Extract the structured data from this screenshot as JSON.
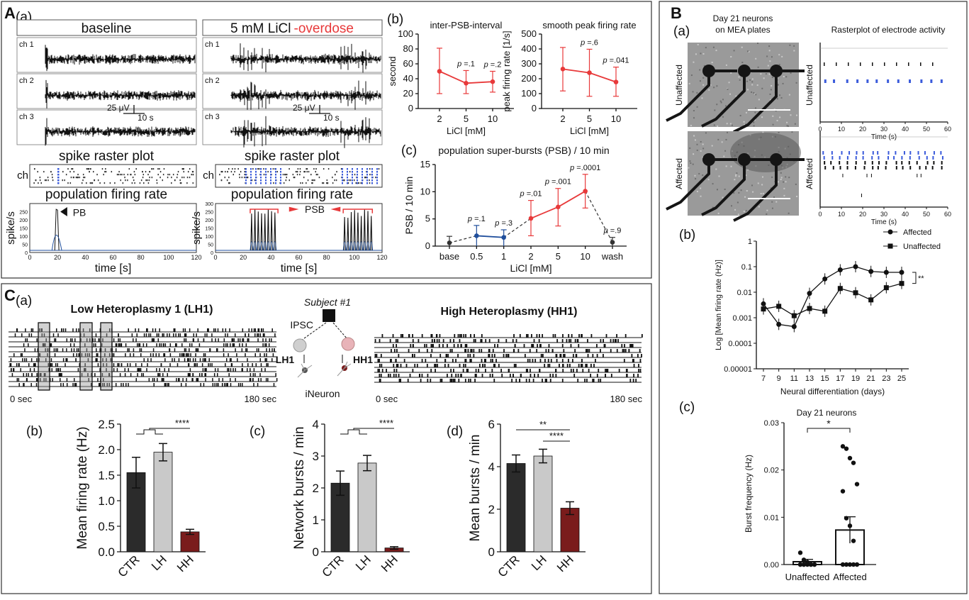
{
  "panelA": {
    "letter": "A",
    "a": {
      "label": "(a)",
      "baseline_title": "baseline",
      "overdose_prefix": "5 mM LiCl",
      "overdose_suffix": "-overdose",
      "channels": [
        "ch 1",
        "ch 2",
        "ch 3"
      ],
      "scalebar_v": "25 μV",
      "scalebar_t": "10 s",
      "raster_title": "spike raster plot",
      "raster_ylabel": "ch",
      "rate_title": "population firing rate",
      "rate_ylabel": "spike/s",
      "rate_xlabel": "time [s]",
      "pb_label": "PB",
      "psb_label": "PSB",
      "baseline_yticks": [
        "0",
        "50",
        "100",
        "150",
        "200",
        "250"
      ],
      "overdose_yticks": [
        "0",
        "50",
        "100",
        "150",
        "200",
        "250",
        "300"
      ],
      "xticks": [
        "0",
        "20",
        "40",
        "60",
        "80",
        "100",
        "120"
      ]
    },
    "b": {
      "label": "(b)",
      "chart_data": [
        {
          "type": "line",
          "title": "inter-PSB-interval",
          "ylabel": "second",
          "xlabel": "LiCl [mM]",
          "categories": [
            "2",
            "5",
            "10"
          ],
          "values": [
            50,
            34,
            36
          ],
          "err_low": [
            20,
            20,
            22
          ],
          "err_high": [
            81,
            51,
            50
          ],
          "ylim": [
            0,
            100
          ],
          "yticks": [
            "0",
            "20",
            "40",
            "60",
            "80",
            "100"
          ],
          "pvalues": [
            "",
            "p =.1",
            "p =.2"
          ]
        },
        {
          "type": "line",
          "title": "smooth peak firing rate",
          "ylabel": "peak firing rate [1/s]",
          "xlabel": "LiCl [mM]",
          "categories": [
            "2",
            "5",
            "10"
          ],
          "values": [
            265,
            240,
            178
          ],
          "err_low": [
            118,
            82,
            82
          ],
          "err_high": [
            410,
            398,
            278
          ],
          "ylim": [
            0,
            500
          ],
          "yticks": [
            "0",
            "100",
            "200",
            "300",
            "400",
            "500"
          ],
          "pvalues": [
            "",
            "p =.6",
            "p =.041"
          ]
        }
      ]
    },
    "c": {
      "label": "(c)",
      "chart_data": {
        "type": "line",
        "title": "population super-bursts (PSB) / 10 min",
        "ylabel": "PSB / 10 min",
        "xlabel": "LiCl [mM]",
        "categories": [
          "base",
          "0.5",
          "1",
          "2",
          "5",
          "10",
          "wash"
        ],
        "values": [
          0.6,
          1.9,
          1.6,
          5.1,
          7.2,
          10.1,
          0.7
        ],
        "err_low": [
          0,
          0,
          0,
          1.9,
          3.7,
          7.0,
          0
        ],
        "err_high": [
          1.8,
          3.8,
          3.0,
          8.4,
          10.6,
          13.2,
          1.6
        ],
        "ylim": [
          0,
          15
        ],
        "yticks": [
          "0",
          "5",
          "10",
          "15"
        ],
        "pvalues": [
          "",
          "p =.1",
          "p =.3",
          "p =.01",
          "p =.001",
          "p =.0001",
          "p =.9"
        ],
        "colors": [
          "#333333",
          "#1f4e9c",
          "#1f4e9c",
          "#e8393a",
          "#e8393a",
          "#e8393a",
          "#333333"
        ]
      }
    }
  },
  "panelB": {
    "letter": "B",
    "a": {
      "label": "(a)",
      "image_title_1": "Day 21 neurons",
      "image_title_2": "on MEA plates",
      "raster_title": "Rasterplot of electrode activity",
      "row_labels": [
        "Unaffected",
        "Affected"
      ],
      "xlabel": "Time (s)",
      "xticks": [
        "0",
        "10",
        "20",
        "30",
        "40",
        "50",
        "60"
      ]
    },
    "b": {
      "label": "(b)",
      "chart_data": {
        "type": "line",
        "ylabel": "Log [Mean firing rate (Hz)]",
        "xlabel": "Neural differentiation (days)",
        "x": [
          7,
          9,
          11,
          13,
          15,
          17,
          19,
          21,
          23,
          25
        ],
        "xticks": [
          "7",
          "9",
          "11",
          "13",
          "15",
          "17",
          "19",
          "21",
          "23",
          "25"
        ],
        "yticks": [
          "0.00001",
          "0.0001",
          "0.001",
          "0.01",
          "0.1",
          "1"
        ],
        "scale": "log",
        "series": [
          {
            "name": "Affected",
            "marker": "circle",
            "values": [
              0.0035,
              0.00055,
              0.00045,
              0.009,
              0.033,
              0.075,
              0.1,
              0.065,
              0.06,
              0.06
            ]
          },
          {
            "name": "Unaffected",
            "marker": "square",
            "values": [
              0.0022,
              0.0028,
              0.0012,
              0.0023,
              0.0018,
              0.014,
              0.0095,
              0.005,
              0.015,
              0.022
            ]
          }
        ],
        "significance": "**"
      }
    },
    "c": {
      "label": "(c)",
      "chart_data": {
        "type": "bar",
        "title": "Day 21 neurons",
        "ylabel": "Burst frequency (Hz)",
        "categories": [
          "Unaffected",
          "Affected"
        ],
        "values": [
          0.0006,
          0.0073
        ],
        "sem": [
          0.0005,
          0.0028
        ],
        "ylim": [
          0,
          0.03
        ],
        "yticks": [
          "0.00",
          "0.01",
          "0.02",
          "0.03"
        ],
        "points_affected": [
          0.025,
          0.0245,
          0.0225,
          0.0215,
          0.017,
          0.0155,
          0.0098,
          0.0082,
          0.005,
          0,
          0,
          0,
          0,
          0
        ],
        "points_unaffected": [
          0.0025,
          0.001,
          0.0005,
          0,
          0,
          0,
          0,
          0,
          0,
          0,
          0,
          0
        ],
        "significance": "*"
      }
    }
  },
  "panelC": {
    "letter": "C",
    "a": {
      "label": "(a)",
      "lh_title": "Low Heteroplasmy 1 (LH1)",
      "hh_title": "High Heteroplasmy (HH1)",
      "subject": "Subject #1",
      "ipsc": "IPSC",
      "lh1": "LH1",
      "hh1": "HH1",
      "ineuron": "iNeuron",
      "start_lh": "0 sec",
      "end_lh": "180 sec",
      "start_hh": "0 sec",
      "end_hh": "180 sec"
    },
    "bars": [
      {
        "label": "(b)",
        "chart_data": {
          "type": "bar",
          "ylabel": "Mean firing rate (Hz)",
          "categories": [
            "CTR",
            "LH",
            "HH"
          ],
          "values": [
            1.55,
            1.95,
            0.39
          ],
          "sem": [
            0.3,
            0.17,
            0.05
          ],
          "ylim": [
            0,
            2.5
          ],
          "yticks": [
            "0.0",
            "0.5",
            "1.0",
            "1.5",
            "2.0",
            "2.5"
          ],
          "colors": [
            "#2b2b2b",
            "#c9c9c9",
            "#7a1c1c"
          ],
          "significance": [
            "****"
          ]
        }
      },
      {
        "label": "(c)",
        "chart_data": {
          "type": "bar",
          "ylabel": "Network bursts / min",
          "categories": [
            "CTR",
            "LH",
            "HH"
          ],
          "values": [
            2.15,
            2.78,
            0.12
          ],
          "sem": [
            0.38,
            0.24,
            0.04
          ],
          "ylim": [
            0,
            4
          ],
          "yticks": [
            "0",
            "1",
            "2",
            "3",
            "4"
          ],
          "colors": [
            "#2b2b2b",
            "#c9c9c9",
            "#7a1c1c"
          ],
          "significance": [
            "****"
          ]
        }
      },
      {
        "label": "(d)",
        "chart_data": {
          "type": "bar",
          "ylabel": "Mean bursts / min",
          "categories": [
            "CTR",
            "LH",
            "HH"
          ],
          "values": [
            4.15,
            4.5,
            2.05
          ],
          "sem": [
            0.4,
            0.32,
            0.3
          ],
          "ylim": [
            0,
            6
          ],
          "yticks": [
            "0",
            "2",
            "4",
            "6"
          ],
          "colors": [
            "#2b2b2b",
            "#c9c9c9",
            "#7a1c1c"
          ],
          "significance": [
            "**",
            "****"
          ]
        }
      }
    ]
  },
  "colors": {
    "red": "#e8393a",
    "blue": "#1f4e9c",
    "maroon": "#7a1c1c",
    "raster_blue": "#3b5bdb"
  }
}
